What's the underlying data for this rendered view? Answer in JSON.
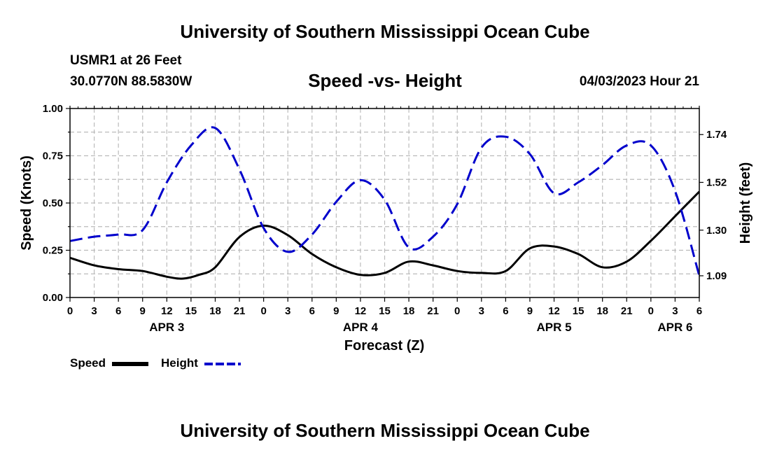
{
  "header": {
    "title": "University of Southern Mississippi Ocean Cube",
    "station": "USMR1 at 26 Feet",
    "coords": "30.0770N  88.5830W",
    "chart_title": "Speed -vs- Height",
    "timestamp": "04/03/2023 Hour 21"
  },
  "footer": {
    "title": "University of Southern Mississippi Ocean Cube"
  },
  "legend": {
    "speed_label": "Speed",
    "height_label": "Height"
  },
  "colors": {
    "speed": "#000000",
    "height": "#0000cc",
    "grid": "#bbbbbb"
  },
  "chart_data": {
    "type": "line",
    "title": "Speed -vs- Height",
    "xlabel": "Forecast (Z)",
    "ylabel_left": "Speed (Knots)",
    "ylabel_right": "Height (feet)",
    "x_range_hours": [
      0,
      78
    ],
    "x_ticks": [
      "0",
      "3",
      "6",
      "9",
      "12",
      "15",
      "18",
      "21",
      "0",
      "3",
      "6",
      "9",
      "12",
      "15",
      "18",
      "21",
      "0",
      "3",
      "6",
      "9",
      "12",
      "15",
      "18",
      "21",
      "0",
      "3",
      "6"
    ],
    "day_labels": [
      {
        "label": "APR 3",
        "hour": 12
      },
      {
        "label": "APR 4",
        "hour": 36
      },
      {
        "label": "APR 5",
        "hour": 60
      },
      {
        "label": "APR 6",
        "hour": 75
      }
    ],
    "y_left": {
      "min": 0,
      "max": 1.0,
      "ticks": [
        "0.00",
        "0.25",
        "0.50",
        "0.75",
        "1.00"
      ]
    },
    "y_right": {
      "min": 0.99,
      "max": 1.86,
      "ticks": [
        "1.09",
        "1.30",
        "1.52",
        "1.74"
      ]
    },
    "series": [
      {
        "name": "Speed",
        "axis": "left",
        "dash": "solid",
        "x": [
          0,
          3,
          6,
          9,
          12,
          14,
          16,
          18,
          21,
          24,
          27,
          30,
          33,
          36,
          39,
          42,
          45,
          48,
          51,
          54,
          57,
          60,
          63,
          66,
          69,
          72,
          75,
          78
        ],
        "values": [
          0.21,
          0.17,
          0.15,
          0.14,
          0.11,
          0.1,
          0.12,
          0.16,
          0.32,
          0.38,
          0.33,
          0.23,
          0.16,
          0.12,
          0.13,
          0.19,
          0.17,
          0.14,
          0.13,
          0.14,
          0.26,
          0.27,
          0.23,
          0.16,
          0.19,
          0.3,
          0.43,
          0.56
        ]
      },
      {
        "name": "Height",
        "axis": "right",
        "dash": "dashed",
        "x": [
          0,
          3,
          6,
          9,
          12,
          15,
          18,
          21,
          24,
          27,
          30,
          33,
          36,
          39,
          42,
          45,
          48,
          51,
          54,
          57,
          60,
          63,
          66,
          69,
          72,
          75,
          78
        ],
        "values": [
          1.25,
          1.27,
          1.28,
          1.3,
          1.52,
          1.69,
          1.77,
          1.58,
          1.31,
          1.2,
          1.28,
          1.43,
          1.53,
          1.44,
          1.22,
          1.27,
          1.42,
          1.68,
          1.73,
          1.65,
          1.47,
          1.52,
          1.6,
          1.69,
          1.69,
          1.48,
          1.09
        ]
      }
    ]
  }
}
